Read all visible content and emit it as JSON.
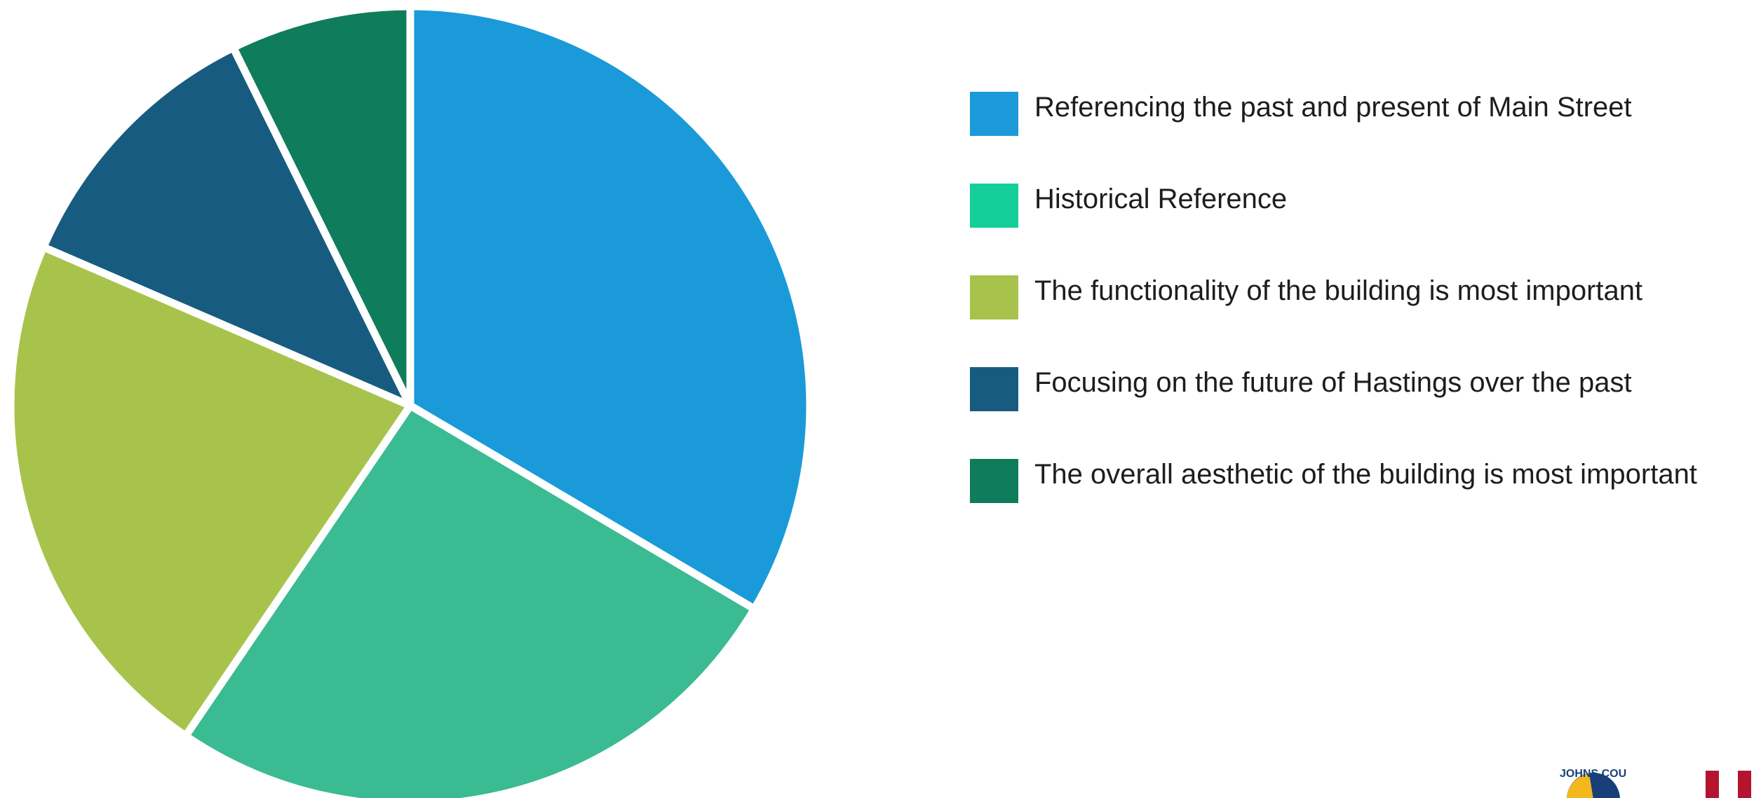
{
  "chart_data": {
    "type": "pie",
    "title": "",
    "legend_position": "right",
    "start_angle_deg": 0,
    "direction": "clockwise",
    "slices": [
      {
        "label": "Referencing the past and present of Main Street",
        "value": 33.5,
        "color": "#1a9ad9"
      },
      {
        "label": "Historical Reference",
        "value": 26.0,
        "color": "#3abb92"
      },
      {
        "label": "The functionality of the building is most important",
        "value": 22.0,
        "color": "#a8c34c"
      },
      {
        "label": "Focusing on the future of Hastings over the past",
        "value": 11.2,
        "color": "#175c80"
      },
      {
        "label": "The overall aesthetic of the building is most important",
        "value": 7.3,
        "color": "#0f7c5b"
      }
    ]
  },
  "legend": {
    "items": [
      {
        "label": "Referencing the past and present of Main Street",
        "color": "#1a9ad9"
      },
      {
        "label": "Historical Reference",
        "color": "#14cf99"
      },
      {
        "label": "The functionality of the building is most important",
        "color": "#a8c34c"
      },
      {
        "label": "Focusing on the future of Hastings over the past",
        "color": "#175c80"
      },
      {
        "label": "The overall aesthetic of the building is most important",
        "color": "#0f7c5b"
      }
    ]
  },
  "footer": {
    "logo_text": "JOHNS COU",
    "logo_icon": "county-seal-icon",
    "flag_icon": "flag-stripes-icon"
  }
}
